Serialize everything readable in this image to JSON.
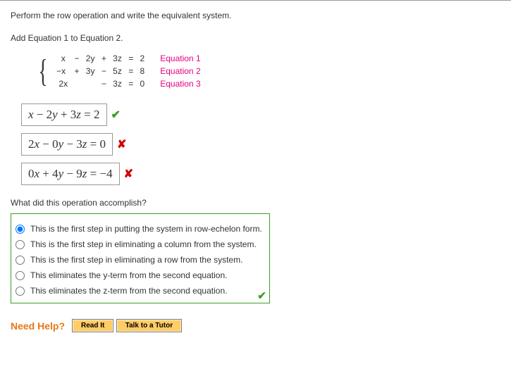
{
  "prompt": "Perform the row operation and write the equivalent system.",
  "sub_prompt": "Add Equation 1 to Equation 2.",
  "system": {
    "rows": [
      {
        "c1": "  x",
        "c2": " − ",
        "c3": "2y",
        "c4": " + ",
        "c5": "3z",
        "c6": " = ",
        "c7": "2",
        "label": "Equation 1"
      },
      {
        "c1": "−x",
        "c2": " + ",
        "c3": "3y",
        "c4": " − ",
        "c5": "5z",
        "c6": " = ",
        "c7": "8",
        "label": "Equation 2"
      },
      {
        "c1": " 2x",
        "c2": "",
        "c3": "",
        "c4": " − ",
        "c5": "3z",
        "c6": " = ",
        "c7": "0",
        "label": "Equation 3"
      }
    ],
    "label_color": "#e6007e"
  },
  "answers": [
    {
      "expr_html": "x − 2y + 3z = 2",
      "status": "check"
    },
    {
      "expr_html": "2x − 0y − 3z = 0",
      "status": "cross"
    },
    {
      "expr_html": "0x + 4y − 9z = −4",
      "status": "cross"
    }
  ],
  "q2": "What did this operation accomplish?",
  "options": [
    {
      "text": "This is the first step in putting the system in row-echelon form.",
      "selected": true
    },
    {
      "text": "This is the first step in eliminating a column from the system.",
      "selected": false
    },
    {
      "text": "This is the first step in eliminating a row from the system.",
      "selected": false
    },
    {
      "text": "This eliminates the y-term from the second equation.",
      "selected": false
    },
    {
      "text": "This eliminates the z-term from the second equation.",
      "selected": false
    }
  ],
  "help": {
    "label": "Need Help?",
    "buttons": [
      "Read It",
      "Talk to a Tutor"
    ]
  },
  "colors": {
    "correct": "#3a9d23",
    "incorrect": "#d40000",
    "accent": "#e67817",
    "button_bg": "#ffcc66"
  }
}
